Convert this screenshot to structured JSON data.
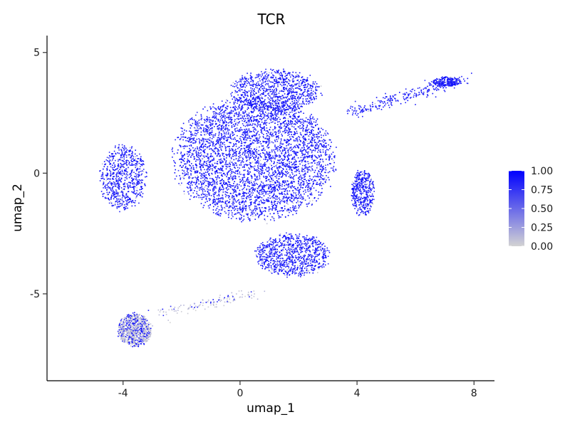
{
  "chart_data": {
    "type": "scatter",
    "title": "TCR",
    "xlabel": "umap_1",
    "ylabel": "umap_2",
    "xlim": [
      -6.6,
      8.7
    ],
    "ylim": [
      -8.6,
      5.7
    ],
    "x_ticks": [
      -4,
      0,
      4,
      8
    ],
    "x_tick_labels": [
      "-4",
      "0",
      "4",
      "8"
    ],
    "y_ticks": [
      -5,
      0,
      5
    ],
    "y_tick_labels": [
      "-5",
      "0",
      "5"
    ],
    "grid": false,
    "legend": {
      "placement": "right",
      "type": "colorbar",
      "ticks": [
        1.0,
        0.75,
        0.5,
        0.25,
        0.0
      ],
      "tick_labels": [
        "1.00",
        "0.75",
        "0.50",
        "0.25",
        "0.00"
      ],
      "range": [
        0,
        1
      ]
    },
    "colors": {
      "low": "#d3d3d3",
      "high": "#0000ff"
    },
    "regions": [
      {
        "name": "main-cluster",
        "center": [
          0.5,
          0.6
        ],
        "spread": [
          2.8,
          2.6
        ],
        "expression": 0.95,
        "density": 4200
      },
      {
        "name": "upper-center",
        "center": [
          1.2,
          3.4
        ],
        "spread": [
          1.6,
          0.9
        ],
        "expression": 0.97,
        "density": 900
      },
      {
        "name": "left-lobe",
        "center": [
          -4.0,
          -0.2
        ],
        "spread": [
          0.8,
          1.4
        ],
        "expression": 0.93,
        "density": 700
      },
      {
        "name": "right-lobe",
        "center": [
          4.2,
          -0.8
        ],
        "spread": [
          0.4,
          1.0
        ],
        "expression": 0.93,
        "density": 400
      },
      {
        "name": "lower-extension",
        "center": [
          1.8,
          -3.4
        ],
        "spread": [
          1.3,
          0.9
        ],
        "expression": 0.92,
        "density": 900
      },
      {
        "name": "protrusion-arm",
        "start": [
          3.8,
          2.5
        ],
        "end": [
          7.6,
          3.9
        ],
        "expression": 0.98,
        "density": 260
      },
      {
        "name": "protrusion-tip",
        "center": [
          7.1,
          3.8
        ],
        "spread": [
          0.5,
          0.2
        ],
        "expression": 0.98,
        "density": 200
      },
      {
        "name": "bottom-cluster",
        "center": [
          -3.6,
          -6.5
        ],
        "spread": [
          0.6,
          0.7
        ],
        "expression": 0.35,
        "density": 900
      },
      {
        "name": "bridge",
        "start": [
          -2.7,
          -5.8
        ],
        "end": [
          0.5,
          -5.0
        ],
        "expression": 0.2,
        "density": 120
      }
    ]
  }
}
